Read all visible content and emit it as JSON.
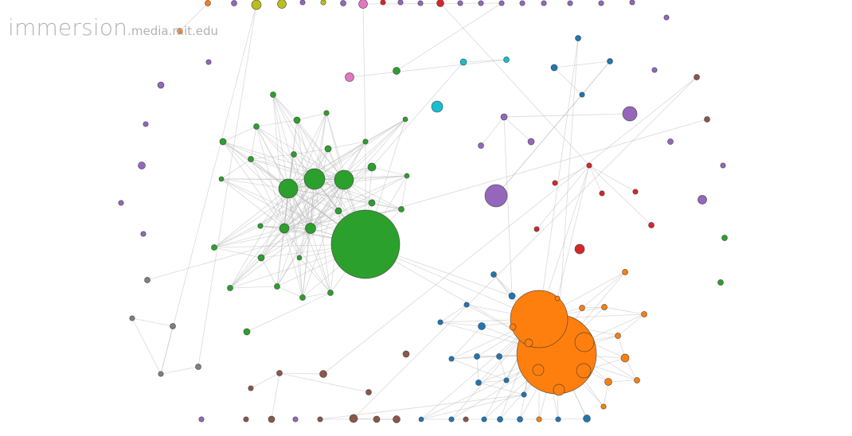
{
  "branding": {
    "logo_main": "immersion",
    "logo_sub": ".media.mit.edu"
  },
  "palette": {
    "green": "#2ca02c",
    "orange": "#ff7f0e",
    "blue": "#1f77b4",
    "purple": "#9467bd",
    "red": "#d62728",
    "brown": "#8c564b",
    "pink": "#e377c2",
    "gray": "#7f7f7f",
    "olive": "#bcbd22",
    "cyan": "#17becf",
    "link": "#bcbcbc"
  },
  "graph": {
    "type": "force-directed network",
    "clusters": [
      {
        "color": "green",
        "node_count": 30,
        "largest_node": "hub"
      },
      {
        "color": "orange",
        "node_count": 26,
        "largest_node": "hub"
      },
      {
        "color": "blue",
        "node_count": 23
      },
      {
        "color": "purple",
        "node_count": 24
      },
      {
        "color": "red",
        "node_count": 9
      },
      {
        "color": "brown",
        "node_count": 15
      },
      {
        "color": "gray",
        "node_count": 5
      },
      {
        "color": "olive",
        "node_count": 3
      },
      {
        "color": "cyan",
        "node_count": 3
      },
      {
        "color": "pink",
        "node_count": 2
      }
    ]
  }
}
